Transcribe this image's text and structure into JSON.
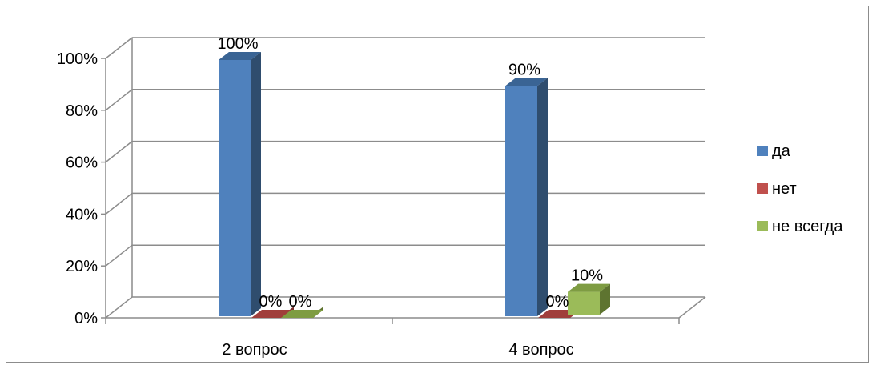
{
  "chart_data": {
    "type": "bar",
    "title": "",
    "xlabel": "",
    "ylabel": "",
    "ylim": [
      0,
      100
    ],
    "y_ticks": [
      0,
      20,
      40,
      60,
      80,
      100
    ],
    "y_tick_labels": [
      "0%",
      "20%",
      "40%",
      "60%",
      "80%",
      "100%"
    ],
    "categories": [
      "2 вопрос",
      "4 вопрос"
    ],
    "series": [
      {
        "name": "да",
        "values": [
          100,
          90
        ],
        "value_labels": [
          "100%",
          "90%"
        ],
        "color": "#4F81BD",
        "side_color": "#2F4D6E",
        "top_color": "#3A6494"
      },
      {
        "name": "нет",
        "values": [
          0,
          0
        ],
        "value_labels": [
          "0%",
          "0%"
        ],
        "color": "#C0504D",
        "side_color": "#7A2E2C",
        "top_color": "#A03E3B"
      },
      {
        "name": "не всегда",
        "values": [
          0,
          10
        ],
        "value_labels": [
          "0%",
          "10%"
        ],
        "color": "#9BBB59",
        "side_color": "#5E7430",
        "top_color": "#7E9C42"
      }
    ],
    "grid": true,
    "style": "3d-clustered-column",
    "legend_position": "right"
  }
}
